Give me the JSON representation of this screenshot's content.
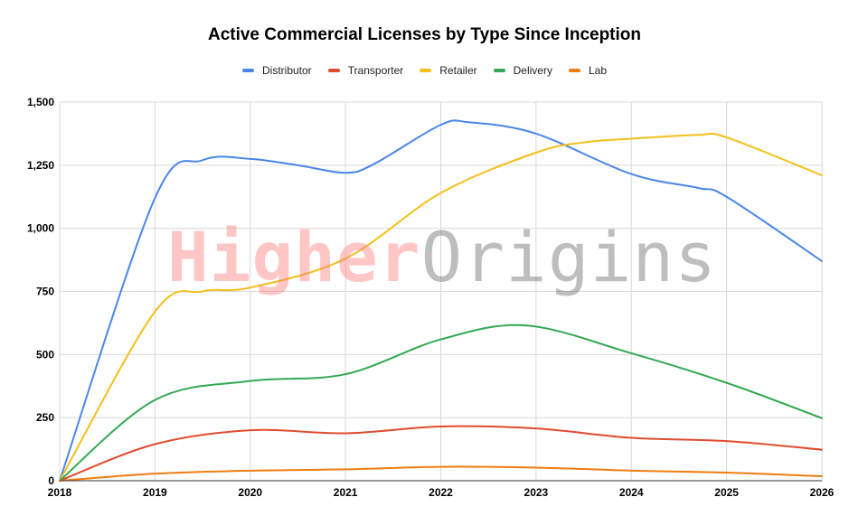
{
  "watermark": {
    "part1": "Higher",
    "part2": "Origins"
  },
  "chart_data": {
    "type": "line",
    "title": "Active Commercial Licenses by Type Since Inception",
    "xlabel": "",
    "ylabel": "",
    "x": [
      "2018",
      "2019",
      "2020",
      "2021",
      "2022",
      "2023",
      "2024",
      "2025",
      "2026"
    ],
    "xlim": [
      2018,
      2026
    ],
    "ylim": [
      0,
      1500
    ],
    "yticks": [
      0,
      250,
      500,
      750,
      1000,
      1250,
      1500
    ],
    "ytick_labels": [
      "0",
      "250",
      "500",
      "750",
      "1,000",
      "1,250",
      "1,500"
    ],
    "grid": true,
    "legend_position": "top-center",
    "smooth": true,
    "series": [
      {
        "name": "Distributor",
        "color": "#4a86e8",
        "x": [
          2018,
          2019,
          2019.5,
          2020,
          2020.5,
          2021,
          2021.3,
          2022,
          2022.3,
          2023,
          2024,
          2024.7,
          2025,
          2026
        ],
        "values": [
          0,
          1120,
          1270,
          1275,
          1250,
          1220,
          1255,
          1410,
          1420,
          1375,
          1215,
          1160,
          1125,
          870
        ]
      },
      {
        "name": "Transporter",
        "color": "#e04b2e",
        "x": [
          2018,
          2019,
          2020,
          2021,
          2022,
          2023,
          2024,
          2025,
          2026
        ],
        "values": [
          0,
          145,
          200,
          188,
          215,
          207,
          170,
          157,
          123
        ]
      },
      {
        "name": "Retailer",
        "color": "#f4bf1b",
        "x": [
          2018,
          2019,
          2019.5,
          2020,
          2021,
          2022,
          2023,
          2023.5,
          2024,
          2024.7,
          2025,
          2026
        ],
        "values": [
          0,
          670,
          750,
          765,
          880,
          1140,
          1300,
          1340,
          1355,
          1370,
          1360,
          1210
        ]
      },
      {
        "name": "Delivery",
        "color": "#34a853",
        "x": [
          2018,
          2019,
          2020,
          2021,
          2022,
          2022.9,
          2024,
          2025,
          2026
        ],
        "values": [
          0,
          320,
          395,
          422,
          560,
          615,
          505,
          388,
          248
        ]
      },
      {
        "name": "Lab",
        "color": "#f07d10",
        "x": [
          2018,
          2019,
          2020,
          2021,
          2022,
          2023,
          2024,
          2025,
          2026
        ],
        "values": [
          0,
          28,
          40,
          45,
          55,
          52,
          40,
          32,
          18
        ]
      }
    ]
  }
}
